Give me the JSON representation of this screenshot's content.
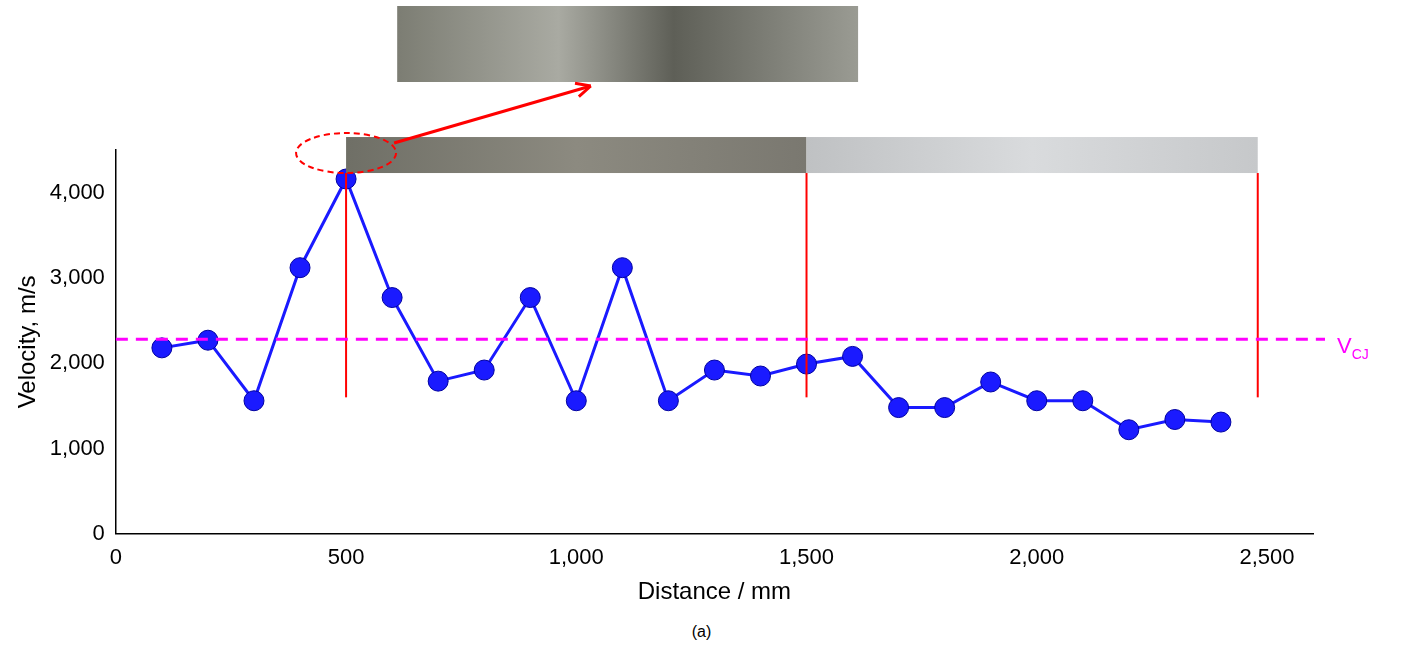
{
  "chart_data": {
    "type": "line",
    "x_label": "Distance / mm",
    "y_label": "Velocity, m/s",
    "caption": "(a)",
    "x": [
      100,
      200,
      300,
      400,
      500,
      600,
      700,
      800,
      900,
      1000,
      1100,
      1200,
      1300,
      1400,
      1500,
      1600,
      1700,
      1800,
      1900,
      2000,
      2100,
      2200,
      2300,
      2400
    ],
    "values": [
      2180,
      2270,
      1560,
      3120,
      4160,
      2770,
      1790,
      1920,
      2770,
      1560,
      3120,
      1560,
      1920,
      1850,
      1990,
      2080,
      1480,
      1480,
      1780,
      1560,
      1560,
      1220,
      1340,
      1310
    ],
    "color": "#1a1aff",
    "marker": "circle",
    "line_style": "solid",
    "xlim": [
      0,
      2600
    ],
    "xticks": [
      0,
      500,
      1000,
      1500,
      2000,
      2500
    ],
    "ylim": [
      0,
      4500
    ],
    "yticks": [
      0,
      1000,
      2000,
      3000,
      4000
    ],
    "grid": false,
    "reference_line": {
      "value": 2280,
      "label": "V",
      "label_subscript": "CJ",
      "color": "#ff00ff",
      "line_style": "dashed"
    },
    "vertical_lines": {
      "x": [
        500,
        1500,
        2480
      ],
      "y_from": 1600,
      "y_to": 4230,
      "color": "#ff0000"
    }
  }
}
